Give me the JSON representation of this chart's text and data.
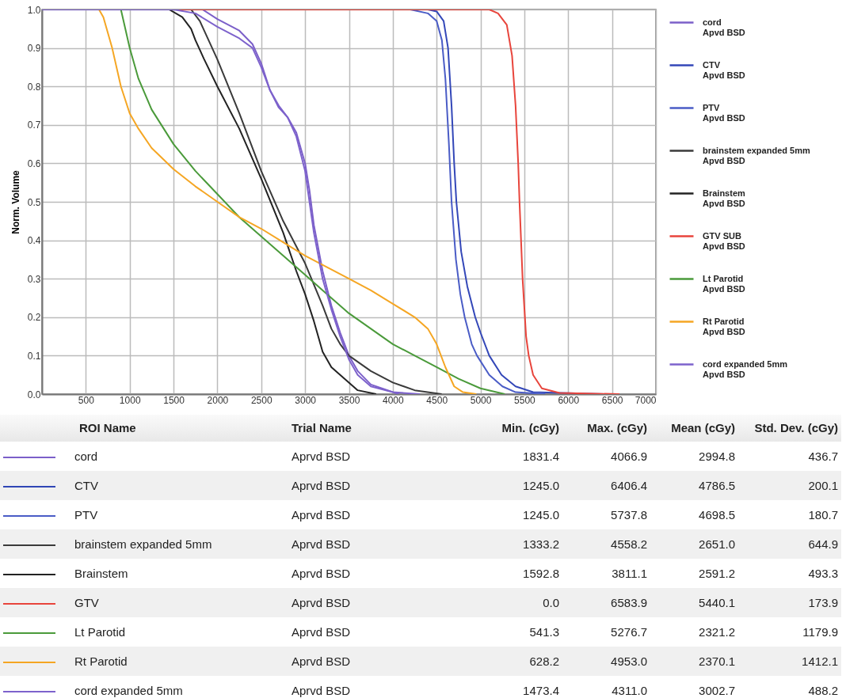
{
  "chart_data": [
    {
      "type": "line",
      "ylabel": "Norm. Volume",
      "xlim": [
        0,
        7000
      ],
      "ylim": [
        0,
        1
      ],
      "xticks": [
        500,
        1000,
        1500,
        2000,
        2500,
        3000,
        3500,
        4000,
        4500,
        5000,
        5500,
        6000,
        6500,
        7000
      ],
      "yticks": [
        {
          "value": 0,
          "label": "0.0"
        },
        {
          "value": 0.1,
          "label": "0.1"
        },
        {
          "value": 0.2,
          "label": "0.2"
        },
        {
          "value": 0.3,
          "label": "0.3"
        },
        {
          "value": 0.4,
          "label": "0.4"
        },
        {
          "value": 0.5,
          "label": "0.5"
        },
        {
          "value": 0.6,
          "label": "0.6"
        },
        {
          "value": 0.7,
          "label": "0.7"
        },
        {
          "value": 0.8,
          "label": "0.8"
        },
        {
          "value": 0.9,
          "label": "0.9"
        },
        {
          "value": 1,
          "label": "1.0"
        }
      ],
      "grid": true,
      "legend": "right",
      "line_style": "solid",
      "marker": "none",
      "series": [
        {
          "name": "cord\nApvd BSD",
          "color": "#7b5fc9",
          "x": [
            0,
            1830,
            2000,
            2250,
            2400,
            2500,
            2600,
            2700,
            2800,
            2900,
            3000,
            3050,
            3100,
            3200,
            3300,
            3400,
            3500,
            3600,
            3750,
            4067
          ],
          "values": [
            1,
            1,
            0.975,
            0.945,
            0.91,
            0.86,
            0.79,
            0.745,
            0.72,
            0.68,
            0.6,
            0.53,
            0.44,
            0.32,
            0.23,
            0.16,
            0.1,
            0.06,
            0.025,
            0
          ]
        },
        {
          "name": "CTV\nApvd BSD",
          "color": "#3347b8",
          "x": [
            0,
            4400,
            4500,
            4580,
            4630,
            4670,
            4700,
            4725,
            4780,
            4850,
            4940,
            5000,
            5100,
            5240,
            5400,
            5600,
            6406
          ],
          "values": [
            1,
            1,
            0.995,
            0.97,
            0.9,
            0.75,
            0.6,
            0.5,
            0.37,
            0.28,
            0.2,
            0.16,
            0.1,
            0.05,
            0.02,
            0.005,
            0
          ]
        },
        {
          "name": "PTV\nApvd BSD",
          "color": "#4a5cc6",
          "x": [
            0,
            4200,
            4400,
            4500,
            4560,
            4600,
            4640,
            4670,
            4720,
            4770,
            4820,
            4900,
            4960,
            5100,
            5250,
            5400,
            5738
          ],
          "values": [
            1,
            1,
            0.99,
            0.97,
            0.92,
            0.82,
            0.65,
            0.5,
            0.35,
            0.26,
            0.2,
            0.13,
            0.1,
            0.05,
            0.02,
            0.005,
            0
          ]
        },
        {
          "name": "brainstem expanded 5mm\nApvd BSD",
          "color": "#3a3a3a",
          "x": [
            0,
            1700,
            1800,
            2000,
            2250,
            2500,
            2750,
            3000,
            3200,
            3300,
            3400,
            3500,
            3750,
            4000,
            4250,
            4558
          ],
          "values": [
            1,
            1,
            0.97,
            0.87,
            0.73,
            0.58,
            0.45,
            0.34,
            0.23,
            0.17,
            0.13,
            0.1,
            0.06,
            0.03,
            0.01,
            0
          ]
        },
        {
          "name": "Brainstem\nApvd BSD",
          "color": "#222222",
          "x": [
            0,
            1450,
            1600,
            1700,
            1750,
            1850,
            2000,
            2250,
            2500,
            2750,
            2900,
            3000,
            3100,
            3200,
            3300,
            3400,
            3500,
            3600,
            3811
          ],
          "values": [
            1,
            1,
            0.98,
            0.95,
            0.92,
            0.87,
            0.8,
            0.69,
            0.56,
            0.42,
            0.32,
            0.26,
            0.19,
            0.11,
            0.07,
            0.05,
            0.03,
            0.01,
            0
          ]
        },
        {
          "name": "GTV SUB\nApvd BSD",
          "color": "#e8453c",
          "x": [
            0,
            5100,
            5200,
            5300,
            5360,
            5400,
            5430,
            5445,
            5480,
            5520,
            5550,
            5600,
            5700,
            5900,
            6584
          ],
          "values": [
            1,
            1,
            0.99,
            0.96,
            0.88,
            0.75,
            0.6,
            0.5,
            0.3,
            0.15,
            0.1,
            0.05,
            0.015,
            0.003,
            0
          ]
        },
        {
          "name": "Lt Parotid\nApvd BSD",
          "color": "#4a9a3a",
          "x": [
            0,
            900,
            950,
            1000,
            1100,
            1250,
            1500,
            1750,
            2000,
            2250,
            2500,
            2750,
            3000,
            3250,
            3500,
            3750,
            4000,
            4250,
            4500,
            4750,
            5000,
            5277
          ],
          "values": [
            1,
            1,
            0.95,
            0.9,
            0.82,
            0.74,
            0.65,
            0.58,
            0.52,
            0.46,
            0.41,
            0.36,
            0.31,
            0.26,
            0.21,
            0.17,
            0.13,
            0.1,
            0.07,
            0.04,
            0.015,
            0
          ]
        },
        {
          "name": "Rt Parotid\nApvd BSD",
          "color": "#f5a623",
          "x": [
            0,
            650,
            700,
            800,
            900,
            1000,
            1100,
            1250,
            1500,
            1750,
            2000,
            2250,
            2500,
            2750,
            3000,
            3250,
            3500,
            3750,
            4000,
            4250,
            4400,
            4500,
            4600,
            4700,
            4800,
            4953
          ],
          "values": [
            1,
            1,
            0.98,
            0.9,
            0.8,
            0.73,
            0.69,
            0.64,
            0.585,
            0.54,
            0.5,
            0.46,
            0.43,
            0.395,
            0.36,
            0.33,
            0.3,
            0.27,
            0.235,
            0.2,
            0.17,
            0.13,
            0.07,
            0.02,
            0.005,
            0
          ]
        },
        {
          "name": "cord expanded 5mm\nApvd BSD",
          "color": "#7d62cc",
          "x": [
            0,
            1500,
            1750,
            2000,
            2250,
            2400,
            2500,
            2600,
            2700,
            2800,
            2900,
            3000,
            3050,
            3100,
            3200,
            3300,
            3400,
            3500,
            3600,
            3750,
            4000,
            4311
          ],
          "values": [
            1,
            1,
            0.99,
            0.955,
            0.925,
            0.9,
            0.85,
            0.79,
            0.75,
            0.72,
            0.67,
            0.58,
            0.5,
            0.42,
            0.3,
            0.22,
            0.15,
            0.09,
            0.05,
            0.02,
            0.005,
            0
          ]
        }
      ]
    },
    {
      "type": "other",
      "categories": [
        "ROI Name",
        "Trial Name",
        "Min. (cGy)",
        "Max. (cGy)",
        "Mean (cGy)",
        "Std. Dev. (cGy)"
      ],
      "colors": [
        "#7b5fc9",
        "#2f45b5",
        "#4a5cc6",
        "#3a3a3a",
        "#222222",
        "#e8453c",
        "#4a9a3a",
        "#f5a623",
        "#7d62cc"
      ],
      "annotations": [
        "cord",
        "Aprvd BSD",
        "1831.4",
        "4066.9",
        "2994.8",
        "436.7",
        "CTV",
        "Aprvd BSD",
        "1245.0",
        "6406.4",
        "4786.5",
        "200.1",
        "PTV",
        "Aprvd BSD",
        "1245.0",
        "5737.8",
        "4698.5",
        "180.7",
        "brainstem expanded 5mm",
        "Aprvd BSD",
        "1333.2",
        "4558.2",
        "2651.0",
        "644.9",
        "Brainstem",
        "Aprvd BSD",
        "1592.8",
        "3811.1",
        "2591.2",
        "493.3",
        "GTV",
        "Aprvd BSD",
        "0.0",
        "6583.9",
        "5440.1",
        "173.9",
        "Lt Parotid",
        "Aprvd BSD",
        "541.3",
        "5276.7",
        "2321.2",
        "1179.9",
        "Rt Parotid",
        "Aprvd BSD",
        "628.2",
        "4953.0",
        "2370.1",
        "1412.1",
        "cord expanded 5mm",
        "Aprvd BSD",
        "1473.4",
        "4311.0",
        "3002.7",
        "488.2"
      ]
    }
  ]
}
